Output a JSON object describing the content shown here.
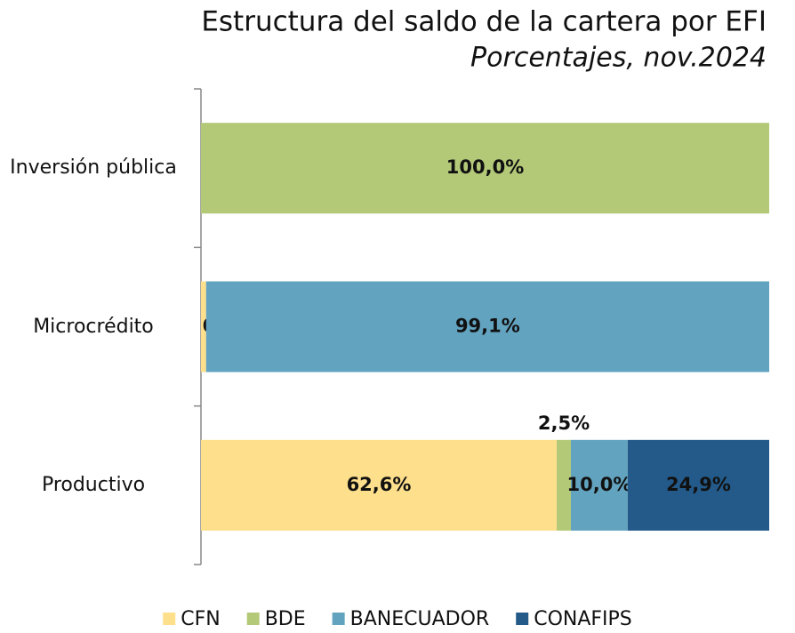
{
  "chart_data": {
    "type": "stacked-bar-horizontal",
    "title": "Estructura del saldo de la cartera por EFI",
    "subtitle": "Porcentajes, nov.2024",
    "categories": [
      "Inversión pública",
      "Microcrédito",
      "Productivo"
    ],
    "xlim": [
      0,
      100
    ],
    "legend": "bottom",
    "series": [
      {
        "name": "CFN",
        "color": "#fddf8c",
        "values": [
          0,
          0.9,
          62.6
        ],
        "value_labels": [
          null,
          "0,9%",
          "62,6%"
        ]
      },
      {
        "name": "BDE",
        "color": "#b3c978",
        "values": [
          100,
          0,
          2.5
        ],
        "value_labels": [
          "100,0%",
          null,
          "2,5%"
        ]
      },
      {
        "name": "BANECUADOR",
        "color": "#62a3bf",
        "values": [
          0,
          99.1,
          10.0
        ],
        "value_labels": [
          null,
          "99,1%",
          "10,0%"
        ]
      },
      {
        "name": "CONAFIPS",
        "color": "#235a8a",
        "values": [
          0,
          0,
          24.9
        ],
        "value_labels": [
          null,
          null,
          "24,9%"
        ]
      }
    ]
  }
}
